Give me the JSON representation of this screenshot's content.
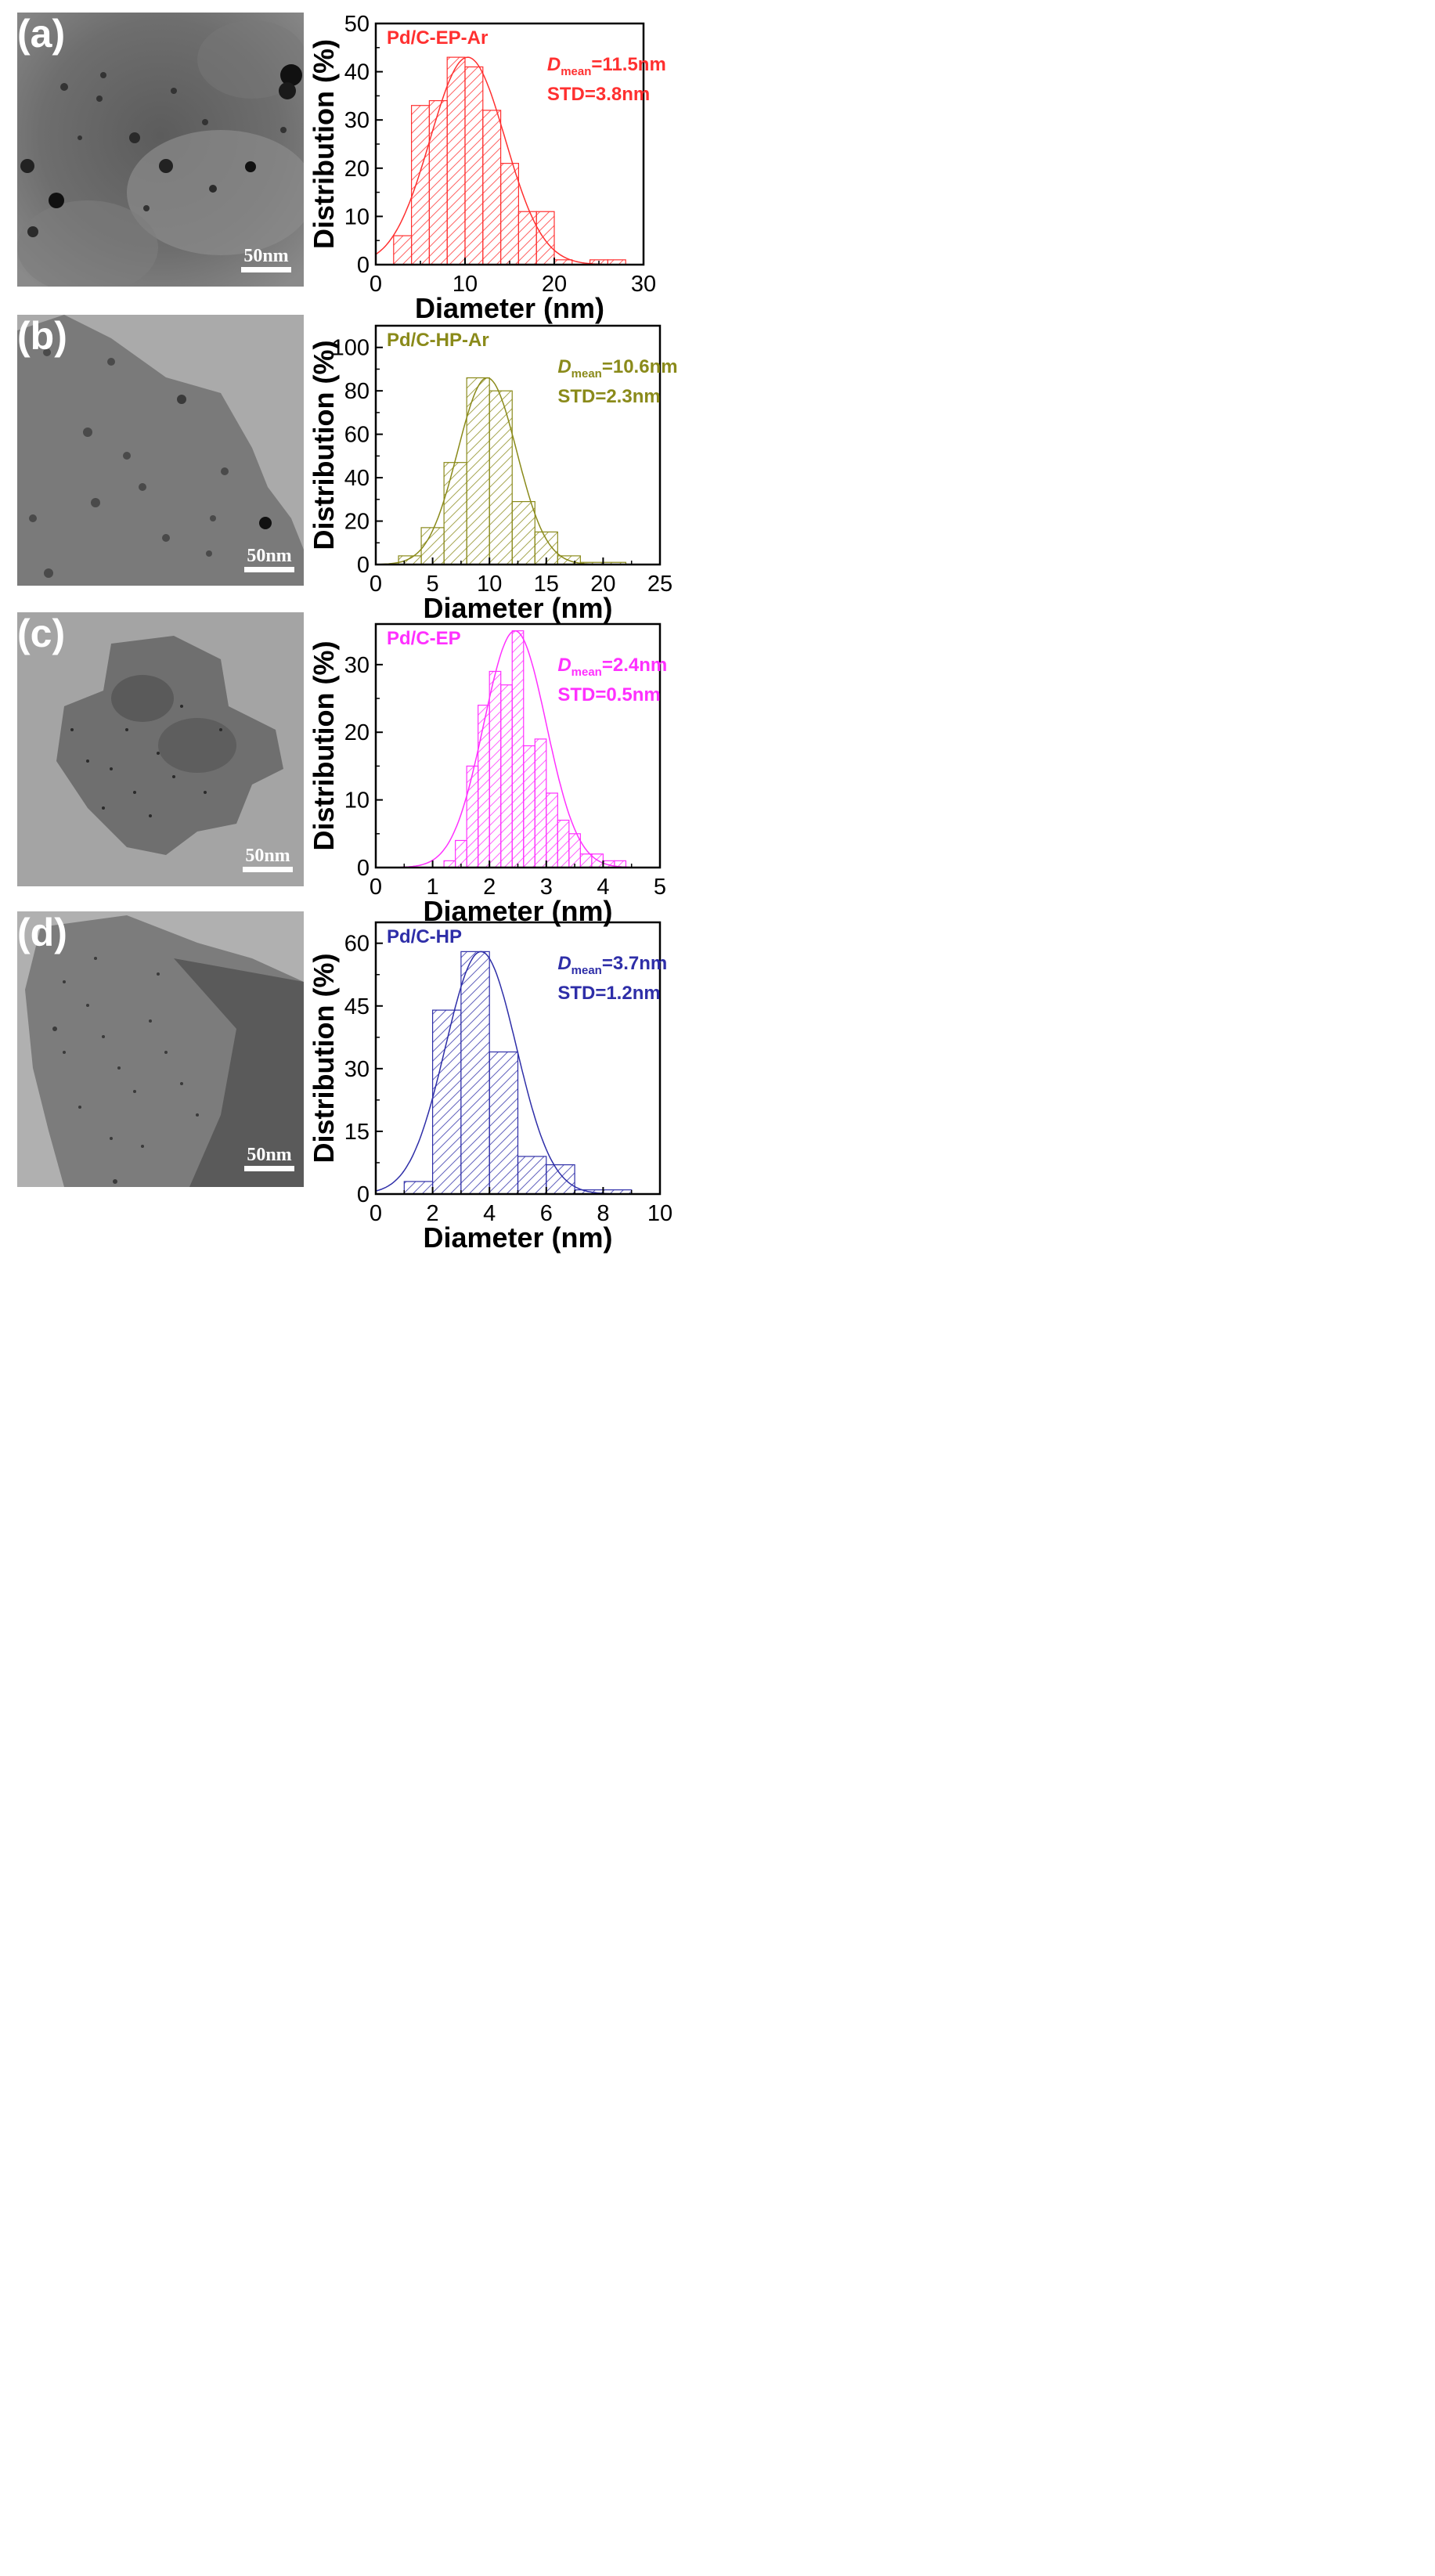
{
  "panels": [
    {
      "label": "(a)",
      "scale_bar": "50nm"
    },
    {
      "label": "(b)",
      "scale_bar": "50nm"
    },
    {
      "label": "(c)",
      "scale_bar": "50nm"
    },
    {
      "label": "(d)",
      "scale_bar": "50nm"
    }
  ],
  "colors": {
    "a": "#ff3030",
    "b": "#8a8a1a",
    "c": "#ff30ff",
    "d": "#2e2ea8"
  },
  "chart_data": [
    {
      "type": "bar",
      "title": "Pd/C-EP-Ar",
      "annotations": {
        "d_prefix": "D",
        "d_sub": "mean",
        "d_value": "=11.5nm",
        "std": "STD=3.8nm"
      },
      "xlabel": "Diameter (nm)",
      "ylabel": "Distribution (%)",
      "bin_width": 2,
      "x": [
        3,
        5,
        7,
        9,
        11,
        13,
        15,
        17,
        19,
        21,
        23,
        25,
        27
      ],
      "values": [
        6,
        33,
        34,
        43,
        41,
        32,
        21,
        11,
        11,
        1,
        0,
        1,
        1
      ],
      "xlim": [
        0,
        30
      ],
      "ylim": [
        0,
        50
      ],
      "xticks": [
        0,
        10,
        20,
        30
      ],
      "yticks": [
        0,
        10,
        20,
        30,
        40,
        50
      ],
      "fit": {
        "type": "gaussian",
        "mean": 10.3,
        "sigma": 4.2,
        "peak": 43
      }
    },
    {
      "type": "bar",
      "title": "Pd/C-HP-Ar",
      "annotations": {
        "d_prefix": "D",
        "d_sub": "mean",
        "d_value": "=10.6nm",
        "std": "STD=2.3nm"
      },
      "xlabel": "Diameter (nm)",
      "ylabel": "Distribution (%)",
      "bin_width": 2,
      "x": [
        3,
        5,
        7,
        9,
        11,
        13,
        15,
        17,
        19,
        21
      ],
      "values": [
        4,
        17,
        47,
        86,
        80,
        29,
        15,
        4,
        1,
        1
      ],
      "xlim": [
        0,
        25
      ],
      "ylim": [
        0,
        110
      ],
      "xticks": [
        0,
        5,
        10,
        15,
        20,
        25
      ],
      "yticks": [
        0,
        20,
        40,
        60,
        80,
        100
      ],
      "fit": {
        "type": "gaussian",
        "mean": 9.8,
        "sigma": 2.6,
        "peak": 86
      }
    },
    {
      "type": "bar",
      "title": "Pd/C-EP",
      "annotations": {
        "d_prefix": "D",
        "d_sub": "mean",
        "d_value": "=2.4nm",
        "std": "STD=0.5nm"
      },
      "xlabel": "Diameter (nm)",
      "ylabel": "Distribution (%)",
      "bin_width": 0.2,
      "x": [
        1.3,
        1.5,
        1.7,
        1.9,
        2.1,
        2.3,
        2.5,
        2.7,
        2.9,
        3.1,
        3.3,
        3.5,
        3.7,
        3.9,
        4.1,
        4.3
      ],
      "values": [
        1,
        4,
        15,
        24,
        29,
        27,
        35,
        18,
        19,
        11,
        7,
        5,
        2,
        2,
        1,
        1
      ],
      "xlim": [
        0,
        5
      ],
      "ylim": [
        0,
        36
      ],
      "xticks": [
        0,
        1,
        2,
        3,
        4,
        5
      ],
      "yticks": [
        0,
        10,
        20,
        30
      ],
      "fit": {
        "type": "gaussian",
        "mean": 2.45,
        "sigma": 0.55,
        "peak": 35
      }
    },
    {
      "type": "bar",
      "title": "Pd/C-HP",
      "annotations": {
        "d_prefix": "D",
        "d_sub": "mean",
        "d_value": "=3.7nm",
        "std": "STD=1.2nm"
      },
      "xlabel": "Diameter (nm)",
      "ylabel": "Distribution (%)",
      "bin_width": 1,
      "x": [
        1.5,
        2.5,
        3.5,
        4.5,
        5.5,
        6.5,
        7.5,
        8.5
      ],
      "values": [
        3,
        44,
        58,
        34,
        9,
        7,
        1,
        1
      ],
      "xlim": [
        0,
        10
      ],
      "ylim": [
        0,
        65
      ],
      "xticks": [
        0,
        2,
        4,
        6,
        8,
        10
      ],
      "yticks": [
        0,
        15,
        30,
        45,
        60
      ],
      "fit": {
        "type": "gaussian",
        "mean": 3.7,
        "sigma": 1.25,
        "peak": 58
      }
    }
  ]
}
